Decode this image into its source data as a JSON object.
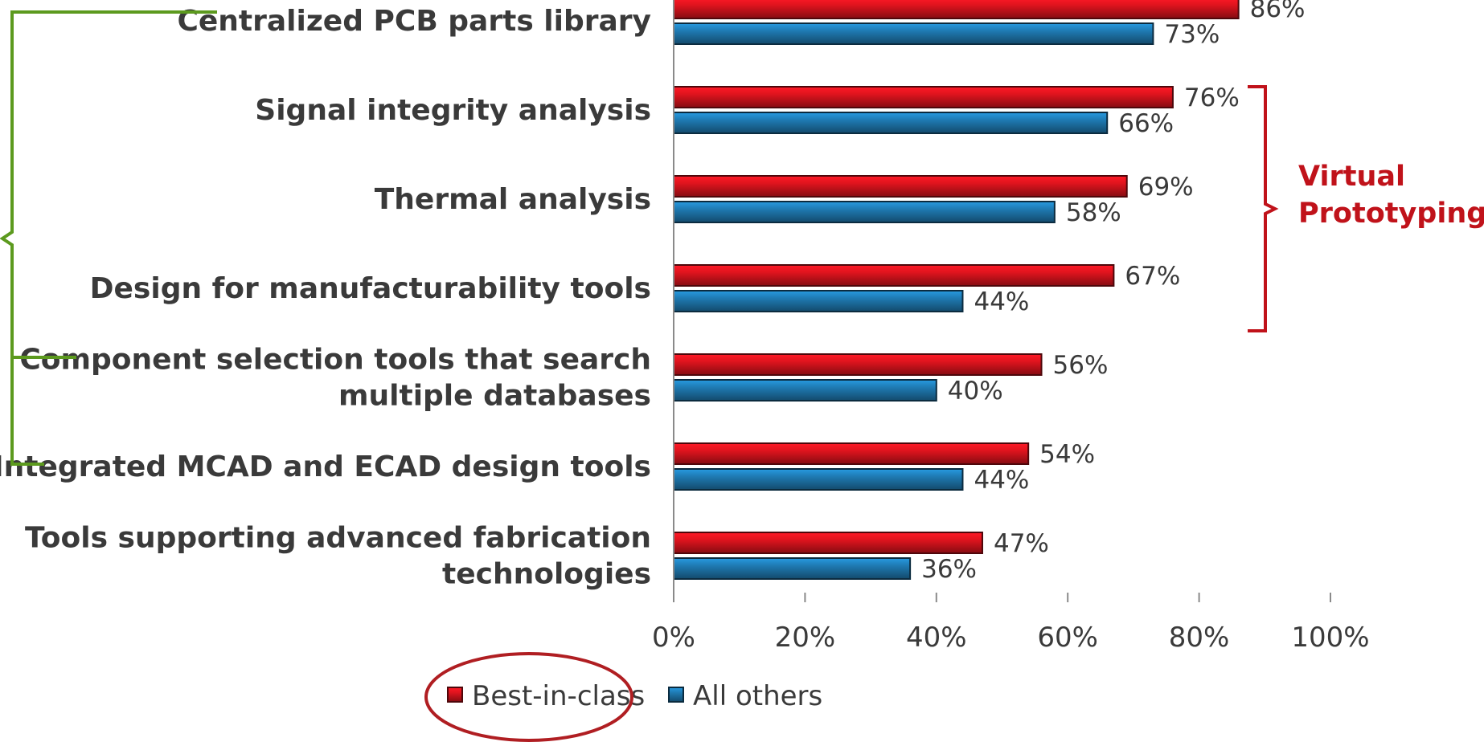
{
  "chart_data": {
    "type": "bar",
    "orientation": "horizontal",
    "categories": [
      [
        "Centralized PCB parts library"
      ],
      [
        "Signal integrity analysis"
      ],
      [
        "Thermal analysis"
      ],
      [
        "Design for manufacturability tools"
      ],
      [
        "Component selection tools that search",
        "multiple databases"
      ],
      [
        "Integrated MCAD and ECAD design tools"
      ],
      [
        "Tools supporting advanced fabrication",
        "technologies"
      ]
    ],
    "series": [
      {
        "name": "Best-in-class",
        "values": [
          86,
          76,
          69,
          67,
          56,
          54,
          47
        ],
        "color": "#e0141e"
      },
      {
        "name": "All others",
        "values": [
          73,
          66,
          58,
          44,
          40,
          44,
          36
        ],
        "color": "#1f7bb4"
      }
    ],
    "value_suffix": "%",
    "xlim": [
      0,
      100
    ],
    "xticks": [
      0,
      20,
      40,
      60,
      80,
      100
    ],
    "xtick_labels": [
      "0%",
      "20%",
      "40%",
      "60%",
      "80%",
      "100%"
    ],
    "grid": false,
    "legend": {
      "position": "bottom",
      "highlighted_entry": "Best-in-class",
      "highlight_color": "#b01e22"
    },
    "annotations": [
      {
        "text": [
          "Virtual",
          "Prototyping"
        ],
        "brackets_categories": [
          1,
          2,
          3
        ],
        "side": "right",
        "color": "#c0121a"
      },
      {
        "text": [],
        "brackets_categories": [
          0,
          4,
          5
        ],
        "side": "left",
        "color": "#5c9a1e"
      }
    ]
  }
}
